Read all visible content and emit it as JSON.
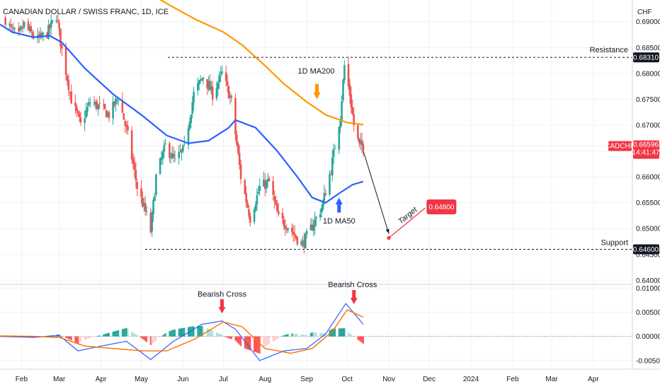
{
  "header": {
    "symbol_title": "CANADIAN DOLLAR / SWISS FRANC, 1D, ICE"
  },
  "colors": {
    "up": "#26a69a",
    "down": "#ef5350",
    "ma50": "#2962ff",
    "ma200": "#ff9800",
    "macd_line": "#2962ff",
    "signal_line": "#ff6d00",
    "accent_red": "#f23645",
    "accent_blue": "#2962ff"
  },
  "price_axis": {
    "currency": "CHF",
    "ticks": [
      "0.69000",
      "0.68500",
      "0.68000",
      "0.67500",
      "0.67000",
      "0.66500",
      "0.66000",
      "0.65500",
      "0.65000",
      "0.64500",
      "0.64000"
    ],
    "resistance_value": "0.68310",
    "support_value": "0.64600",
    "current_label": "CADCHF",
    "current_value": "0.66596",
    "countdown": "14:41:47"
  },
  "macd_axis": {
    "ticks": [
      "0.01000",
      "0.00500",
      "0.00000",
      "-0.00500"
    ]
  },
  "time_axis": {
    "labels": [
      "Feb",
      "Mar",
      "Apr",
      "May",
      "Jun",
      "Jul",
      "Aug",
      "Sep",
      "Oct",
      "Nov",
      "Dec",
      "2024",
      "Feb",
      "Mar",
      "Apr"
    ]
  },
  "annotations": {
    "resistance": "Resistance",
    "support": "Support",
    "ma200_label": "1D MA200",
    "ma50_label": "1D MA50",
    "target_text": "Target",
    "target_value": "0.64800",
    "bearish_cross_1": "Bearish Cross",
    "bearish_cross_2": "Bearish Cross"
  },
  "chart_data": {
    "type": "candlestick",
    "title": "CANADIAN DOLLAR / SWISS FRANC, 1D, ICE",
    "x_range": [
      "2023-01-16",
      "2024-04-30"
    ],
    "y_range": [
      0.6395,
      0.6942
    ],
    "price_path": [
      {
        "date": "2023-01-20",
        "close": 0.6905
      },
      {
        "date": "2023-01-24",
        "close": 0.6885
      },
      {
        "date": "2023-01-30",
        "close": 0.6872
      },
      {
        "date": "2023-02-03",
        "close": 0.6895
      },
      {
        "date": "2023-02-07",
        "close": 0.688
      },
      {
        "date": "2023-02-13",
        "close": 0.6865
      },
      {
        "date": "2023-02-20",
        "close": 0.6878
      },
      {
        "date": "2023-02-27",
        "close": 0.6912
      },
      {
        "date": "2023-03-03",
        "close": 0.6845
      },
      {
        "date": "2023-03-10",
        "close": 0.675
      },
      {
        "date": "2023-03-17",
        "close": 0.67
      },
      {
        "date": "2023-03-24",
        "close": 0.6745
      },
      {
        "date": "2023-03-31",
        "close": 0.6735
      },
      {
        "date": "2023-04-07",
        "close": 0.672
      },
      {
        "date": "2023-04-14",
        "close": 0.6755
      },
      {
        "date": "2023-04-21",
        "close": 0.668
      },
      {
        "date": "2023-04-28",
        "close": 0.658
      },
      {
        "date": "2023-05-05",
        "close": 0.6525
      },
      {
        "date": "2023-05-08",
        "close": 0.6495
      },
      {
        "date": "2023-05-12",
        "close": 0.66
      },
      {
        "date": "2023-05-19",
        "close": 0.666
      },
      {
        "date": "2023-05-26",
        "close": 0.663
      },
      {
        "date": "2023-06-02",
        "close": 0.6655
      },
      {
        "date": "2023-06-09",
        "close": 0.676
      },
      {
        "date": "2023-06-16",
        "close": 0.6795
      },
      {
        "date": "2023-06-23",
        "close": 0.676
      },
      {
        "date": "2023-06-30",
        "close": 0.68
      },
      {
        "date": "2023-07-04",
        "close": 0.677
      },
      {
        "date": "2023-07-07",
        "close": 0.6745
      },
      {
        "date": "2023-07-14",
        "close": 0.66
      },
      {
        "date": "2023-07-21",
        "close": 0.652
      },
      {
        "date": "2023-07-28",
        "close": 0.658
      },
      {
        "date": "2023-08-04",
        "close": 0.659
      },
      {
        "date": "2023-08-11",
        "close": 0.652
      },
      {
        "date": "2023-08-18",
        "close": 0.6505
      },
      {
        "date": "2023-08-25",
        "close": 0.648
      },
      {
        "date": "2023-08-29",
        "close": 0.647
      },
      {
        "date": "2023-09-05",
        "close": 0.6505
      },
      {
        "date": "2023-09-12",
        "close": 0.654
      },
      {
        "date": "2023-09-19",
        "close": 0.6615
      },
      {
        "date": "2023-09-26",
        "close": 0.672
      },
      {
        "date": "2023-09-29",
        "close": 0.6815
      },
      {
        "date": "2023-10-03",
        "close": 0.676
      },
      {
        "date": "2023-10-06",
        "close": 0.67
      },
      {
        "date": "2023-10-10",
        "close": 0.666
      },
      {
        "date": "2023-10-13",
        "close": 0.666
      }
    ],
    "ma200_path": [
      {
        "date": "2023-05-01",
        "value": 0.6965
      },
      {
        "date": "2023-05-20",
        "value": 0.6935
      },
      {
        "date": "2023-06-10",
        "value": 0.6905
      },
      {
        "date": "2023-07-01",
        "value": 0.688
      },
      {
        "date": "2023-07-15",
        "value": 0.6855
      },
      {
        "date": "2023-08-01",
        "value": 0.6815
      },
      {
        "date": "2023-08-15",
        "value": 0.678
      },
      {
        "date": "2023-09-01",
        "value": 0.6745
      },
      {
        "date": "2023-09-15",
        "value": 0.672
      },
      {
        "date": "2023-10-01",
        "value": 0.6705
      },
      {
        "date": "2023-10-13",
        "value": 0.6701
      }
    ],
    "ma50_path": [
      {
        "date": "2023-01-16",
        "value": 0.6895
      },
      {
        "date": "2023-01-25",
        "value": 0.688
      },
      {
        "date": "2023-02-10",
        "value": 0.687
      },
      {
        "date": "2023-02-22",
        "value": 0.6873
      },
      {
        "date": "2023-03-03",
        "value": 0.686
      },
      {
        "date": "2023-03-20",
        "value": 0.681
      },
      {
        "date": "2023-04-10",
        "value": 0.676
      },
      {
        "date": "2023-05-01",
        "value": 0.672
      },
      {
        "date": "2023-05-20",
        "value": 0.668
      },
      {
        "date": "2023-06-05",
        "value": 0.6665
      },
      {
        "date": "2023-06-20",
        "value": 0.667
      },
      {
        "date": "2023-07-05",
        "value": 0.6695
      },
      {
        "date": "2023-07-10",
        "value": 0.671
      },
      {
        "date": "2023-07-25",
        "value": 0.6695
      },
      {
        "date": "2023-08-10",
        "value": 0.665
      },
      {
        "date": "2023-08-25",
        "value": 0.66
      },
      {
        "date": "2023-09-05",
        "value": 0.656
      },
      {
        "date": "2023-09-15",
        "value": 0.655
      },
      {
        "date": "2023-09-25",
        "value": 0.6568
      },
      {
        "date": "2023-10-05",
        "value": 0.6585
      },
      {
        "date": "2023-10-13",
        "value": 0.6591
      }
    ],
    "levels": {
      "resistance": 0.6831,
      "support": 0.646,
      "current": 0.66596,
      "target": 0.648
    },
    "projection": [
      {
        "date": "2023-10-13",
        "value": 0.665
      },
      {
        "date": "2023-11-01",
        "value": 0.649
      }
    ],
    "target_line": [
      {
        "date": "2023-11-01",
        "value": 0.6482
      },
      {
        "date": "2023-11-28",
        "value": 0.654
      }
    ],
    "macd": {
      "y_range": [
        -0.0065,
        0.0105
      ],
      "line": [
        {
          "date": "2023-01-16",
          "value": 0.0
        },
        {
          "date": "2023-02-10",
          "value": -0.0002
        },
        {
          "date": "2023-03-01",
          "value": 0.0002
        },
        {
          "date": "2023-03-15",
          "value": -0.003
        },
        {
          "date": "2023-04-01",
          "value": -0.002
        },
        {
          "date": "2023-04-20",
          "value": -0.001
        },
        {
          "date": "2023-05-08",
          "value": -0.0048
        },
        {
          "date": "2023-05-25",
          "value": -0.001
        },
        {
          "date": "2023-06-15",
          "value": 0.0025
        },
        {
          "date": "2023-06-30",
          "value": 0.0032
        },
        {
          "date": "2023-07-10",
          "value": 0.0015
        },
        {
          "date": "2023-07-28",
          "value": -0.005
        },
        {
          "date": "2023-08-15",
          "value": -0.003
        },
        {
          "date": "2023-09-01",
          "value": -0.0025
        },
        {
          "date": "2023-09-15",
          "value": 0.0005
        },
        {
          "date": "2023-09-30",
          "value": 0.0068
        },
        {
          "date": "2023-10-13",
          "value": 0.0025
        }
      ],
      "signal": [
        {
          "date": "2023-01-16",
          "value": 0.0001
        },
        {
          "date": "2023-02-10",
          "value": 0.0
        },
        {
          "date": "2023-03-01",
          "value": -0.0002
        },
        {
          "date": "2023-03-20",
          "value": -0.002
        },
        {
          "date": "2023-04-10",
          "value": -0.0025
        },
        {
          "date": "2023-05-01",
          "value": -0.003
        },
        {
          "date": "2023-05-20",
          "value": -0.003
        },
        {
          "date": "2023-06-10",
          "value": -0.0005
        },
        {
          "date": "2023-07-01",
          "value": 0.003
        },
        {
          "date": "2023-07-15",
          "value": 0.002
        },
        {
          "date": "2023-08-01",
          "value": -0.0025
        },
        {
          "date": "2023-08-20",
          "value": -0.0035
        },
        {
          "date": "2023-09-05",
          "value": -0.0025
        },
        {
          "date": "2023-09-20",
          "value": 0.001
        },
        {
          "date": "2023-10-01",
          "value": 0.0055
        },
        {
          "date": "2023-10-13",
          "value": 0.004
        }
      ]
    }
  }
}
